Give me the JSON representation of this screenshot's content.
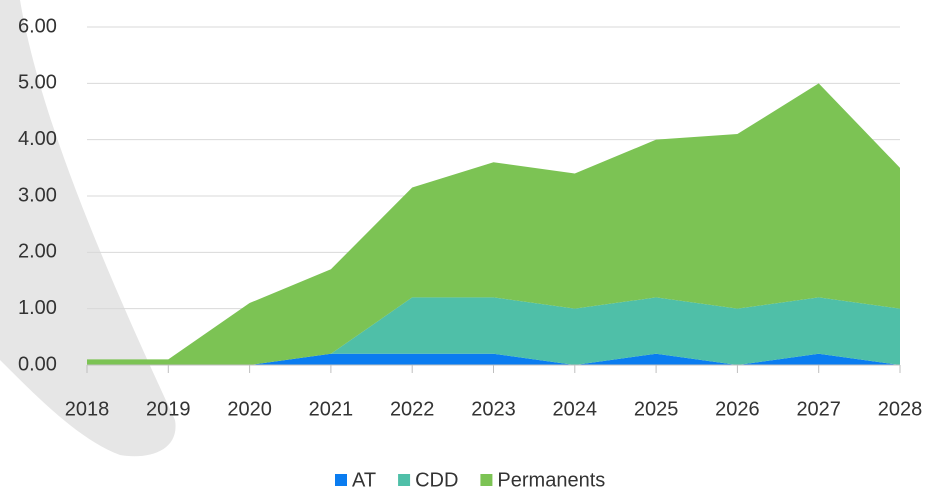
{
  "chart_data": {
    "type": "stacked_area",
    "categories": [
      "2018",
      "2019",
      "2020",
      "2021",
      "2022",
      "2023",
      "2024",
      "2025",
      "2026",
      "2027",
      "2028"
    ],
    "series": [
      {
        "name": "AT",
        "color": "#0a7cf0",
        "values": [
          0,
          0,
          0,
          0.2,
          0.2,
          0.2,
          0,
          0.2,
          0,
          0.2,
          0
        ]
      },
      {
        "name": "CDD",
        "color": "#4fbfa8",
        "values": [
          0,
          0,
          0,
          0,
          1.0,
          1.0,
          1.0,
          1.0,
          1.0,
          1.0,
          1.0
        ]
      },
      {
        "name": "Permanents",
        "color": "#7cc354",
        "values": [
          0.1,
          0.1,
          1.1,
          1.5,
          1.95,
          2.4,
          2.4,
          2.8,
          3.1,
          3.8,
          2.5
        ]
      }
    ],
    "ylim": [
      0,
      6
    ],
    "yticks": [
      {
        "value": 0,
        "label": "0.00"
      },
      {
        "value": 1,
        "label": "1.00"
      },
      {
        "value": 2,
        "label": "2.00"
      },
      {
        "value": 3,
        "label": "3.00"
      },
      {
        "value": 4,
        "label": "4.00"
      },
      {
        "value": 5,
        "label": "5.00"
      },
      {
        "value": 6,
        "label": "6.00"
      }
    ],
    "grid": true
  }
}
